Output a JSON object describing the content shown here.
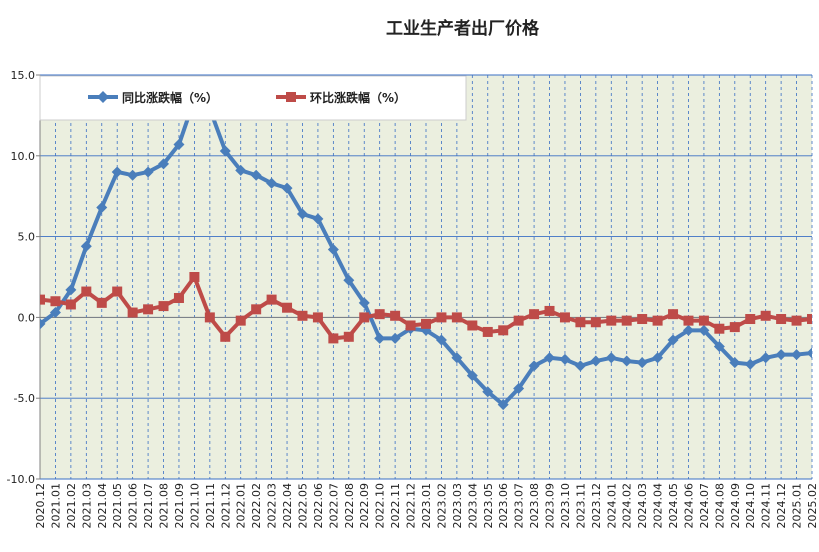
{
  "chart_data": {
    "type": "line",
    "title": "工业生产者出厂价格",
    "xlabel": "",
    "ylabel": "",
    "ylim": [
      -10,
      15
    ],
    "yticks": [
      15,
      10,
      5,
      0,
      -5,
      -10
    ],
    "ytick_labels": [
      "15.0",
      "10.0",
      "5.0",
      "0.0",
      "-5.0",
      "-10.0"
    ],
    "grid": true,
    "legend_position": "top-left",
    "categories": [
      "2020.12",
      "2021.01",
      "2021.02",
      "2021.03",
      "2021.04",
      "2021.05",
      "2021.06",
      "2021.07",
      "2021.08",
      "2021.09",
      "2021.10",
      "2021.11",
      "2021.12",
      "2022.01",
      "2022.02",
      "2022.03",
      "2022.04",
      "2022.05",
      "2022.06",
      "2022.07",
      "2022.08",
      "2022.09",
      "2022.10",
      "2022.11",
      "2022.12",
      "2023.01",
      "2023.02",
      "2023.03",
      "2023.04",
      "2023.05",
      "2023.06",
      "2023.07",
      "2023.08",
      "2023.09",
      "2023.10",
      "2023.11",
      "2023.12",
      "2024.01",
      "2024.02",
      "2024.03",
      "2024.04",
      "2024.05",
      "2024.06",
      "2024.07",
      "2024.08",
      "2024.09",
      "2024.10",
      "2024.11",
      "2024.12",
      "2025.01",
      "2025.02"
    ],
    "series": [
      {
        "name": "同比涨跌幅（%）",
        "color": "#4a7ebb",
        "marker": "diamond",
        "values": [
          -0.4,
          0.3,
          1.7,
          4.4,
          6.8,
          9.0,
          8.8,
          9.0,
          9.5,
          10.7,
          13.5,
          12.9,
          10.3,
          9.1,
          8.8,
          8.3,
          8.0,
          6.4,
          6.1,
          4.2,
          2.3,
          0.9,
          -1.3,
          -1.3,
          -0.7,
          -0.8,
          -1.4,
          -2.5,
          -3.6,
          -4.6,
          -5.4,
          -4.4,
          -3.0,
          -2.5,
          -2.6,
          -3.0,
          -2.7,
          -2.5,
          -2.7,
          -2.8,
          -2.5,
          -1.4,
          -0.8,
          -0.8,
          -1.8,
          -2.8,
          -2.9,
          -2.5,
          -2.3,
          -2.3,
          -2.2
        ]
      },
      {
        "name": "环比涨跌幅（%）",
        "color": "#be4b48",
        "marker": "square",
        "values": [
          1.1,
          1.0,
          0.8,
          1.6,
          0.9,
          1.6,
          0.3,
          0.5,
          0.7,
          1.2,
          2.5,
          0.0,
          -1.2,
          -0.2,
          0.5,
          1.1,
          0.6,
          0.1,
          0.0,
          -1.3,
          -1.2,
          0.0,
          0.2,
          0.1,
          -0.5,
          -0.4,
          0.0,
          0.0,
          -0.5,
          -0.9,
          -0.8,
          -0.2,
          0.2,
          0.4,
          0.0,
          -0.3,
          -0.3,
          -0.2,
          -0.2,
          -0.1,
          -0.2,
          0.2,
          -0.2,
          -0.2,
          -0.7,
          -0.6,
          -0.1,
          0.1,
          -0.1,
          -0.2,
          -0.1
        ]
      }
    ]
  },
  "colors": {
    "plot_background": "#ebefdf",
    "grid_line": "#3a6fc4",
    "axis": "#808080"
  }
}
